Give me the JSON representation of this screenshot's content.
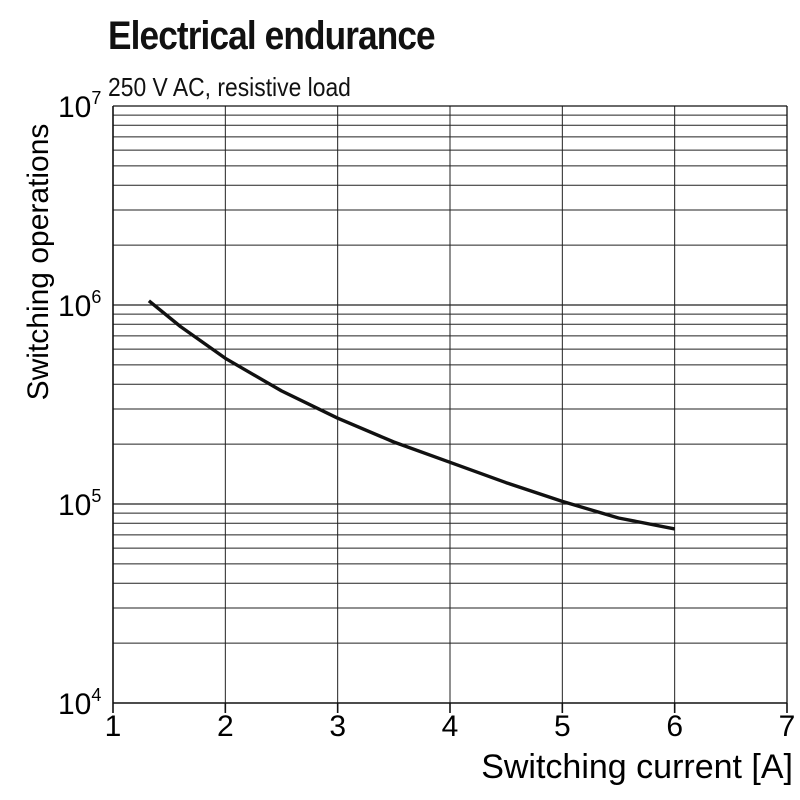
{
  "chart_data": {
    "type": "line",
    "title": "Electrical endurance",
    "subtitle": "250 V AC, resistive load",
    "xlabel": "Switching current [A]",
    "ylabel": "Switching operations",
    "x_ticks": [
      "1",
      "2",
      "3",
      "4",
      "5",
      "6",
      "7"
    ],
    "y_ticks": [
      {
        "base": "10",
        "exp": "4",
        "value": 10000
      },
      {
        "base": "10",
        "exp": "5",
        "value": 100000
      },
      {
        "base": "10",
        "exp": "6",
        "value": 1000000
      },
      {
        "base": "10",
        "exp": "7",
        "value": 10000000
      }
    ],
    "xlim": [
      1,
      7
    ],
    "ylim": [
      10000,
      10000000
    ],
    "y_scale": "log",
    "grid": true,
    "series": [
      {
        "x": [
          1.32,
          1.6,
          2.0,
          2.5,
          3.0,
          3.5,
          4.0,
          4.5,
          5.0,
          5.5,
          6.0
        ],
        "y": [
          1050000,
          780000,
          540000,
          370000,
          270000,
          205000,
          162000,
          128000,
          103000,
          85000,
          75000
        ]
      }
    ],
    "line_color": "#111111"
  }
}
